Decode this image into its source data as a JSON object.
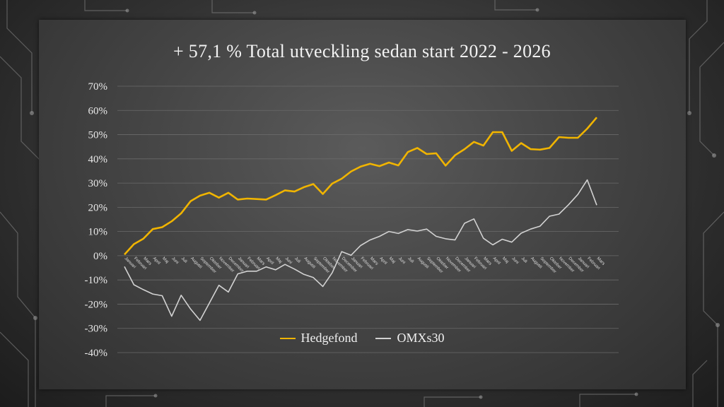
{
  "chart_data": {
    "type": "line",
    "title": "+ 57,1 % Total utveckling sedan start 2022 - 2026",
    "xlabel": "",
    "ylabel": "",
    "ylim": [
      -40,
      70
    ],
    "yticks": [
      "70%",
      "60%",
      "50%",
      "40%",
      "30%",
      "20%",
      "10%",
      "0%",
      "-10%",
      "-20%",
      "-30%",
      "-40%"
    ],
    "grid": true,
    "legend_position": "bottom",
    "categories": [
      "Januari",
      "Februari",
      "Mars",
      "April",
      "Maj",
      "Juni",
      "Juli",
      "Augusti",
      "September",
      "Oktober",
      "November",
      "December",
      "Januari",
      "Februari",
      "Mars",
      "April",
      "Maj",
      "Juni",
      "Juli",
      "Augusti",
      "September",
      "Oktober",
      "November",
      "December",
      "Januari",
      "Februari",
      "Mars",
      "April",
      "Maj",
      "Juni",
      "Juli",
      "Augusti",
      "September",
      "Oktober",
      "November",
      "December",
      "Januari",
      "Februari",
      "Mars",
      "April",
      "Maj",
      "Juni",
      "Juli",
      "Augusti",
      "September",
      "Oktober",
      "November",
      "December",
      "Januari",
      "Februari",
      "Mars"
    ],
    "series": [
      {
        "name": "Hedgefond",
        "color": "#f0b400",
        "values": [
          0.5,
          4.8,
          7.0,
          11.0,
          11.8,
          14.2,
          17.5,
          22.5,
          24.8,
          26.0,
          24.0,
          26.0,
          23.2,
          23.6,
          23.4,
          23.2,
          25.0,
          27.0,
          26.5,
          28.3,
          29.6,
          25.5,
          29.8,
          31.8,
          34.8,
          36.8,
          38.0,
          37.0,
          38.5,
          37.3,
          42.8,
          44.5,
          42.0,
          42.3,
          37.2,
          41.5,
          44.0,
          47.0,
          45.5,
          51.0,
          51.0,
          43.3,
          46.5,
          44.0,
          43.8,
          44.5,
          49.0,
          48.7,
          48.7,
          52.5,
          57.1
        ]
      },
      {
        "name": "OMXs30",
        "color": "#d2d2d2",
        "values": [
          -4.5,
          -12.0,
          -14.0,
          -15.8,
          -16.5,
          -25.0,
          -16.3,
          -22.0,
          -26.7,
          -19.5,
          -12.2,
          -15.0,
          -7.5,
          -6.4,
          -6.4,
          -4.6,
          -5.8,
          -3.6,
          -5.5,
          -7.7,
          -9.0,
          -12.7,
          -7.0,
          1.7,
          0.2,
          4.2,
          6.5,
          8.0,
          10.0,
          9.2,
          10.8,
          10.2,
          11.0,
          8.0,
          7.0,
          6.5,
          13.4,
          15.2,
          7.2,
          4.5,
          6.8,
          5.6,
          9.3,
          11.0,
          12.2,
          16.3,
          17.2,
          21.0,
          25.3,
          31.3,
          20.9
        ]
      }
    ]
  }
}
